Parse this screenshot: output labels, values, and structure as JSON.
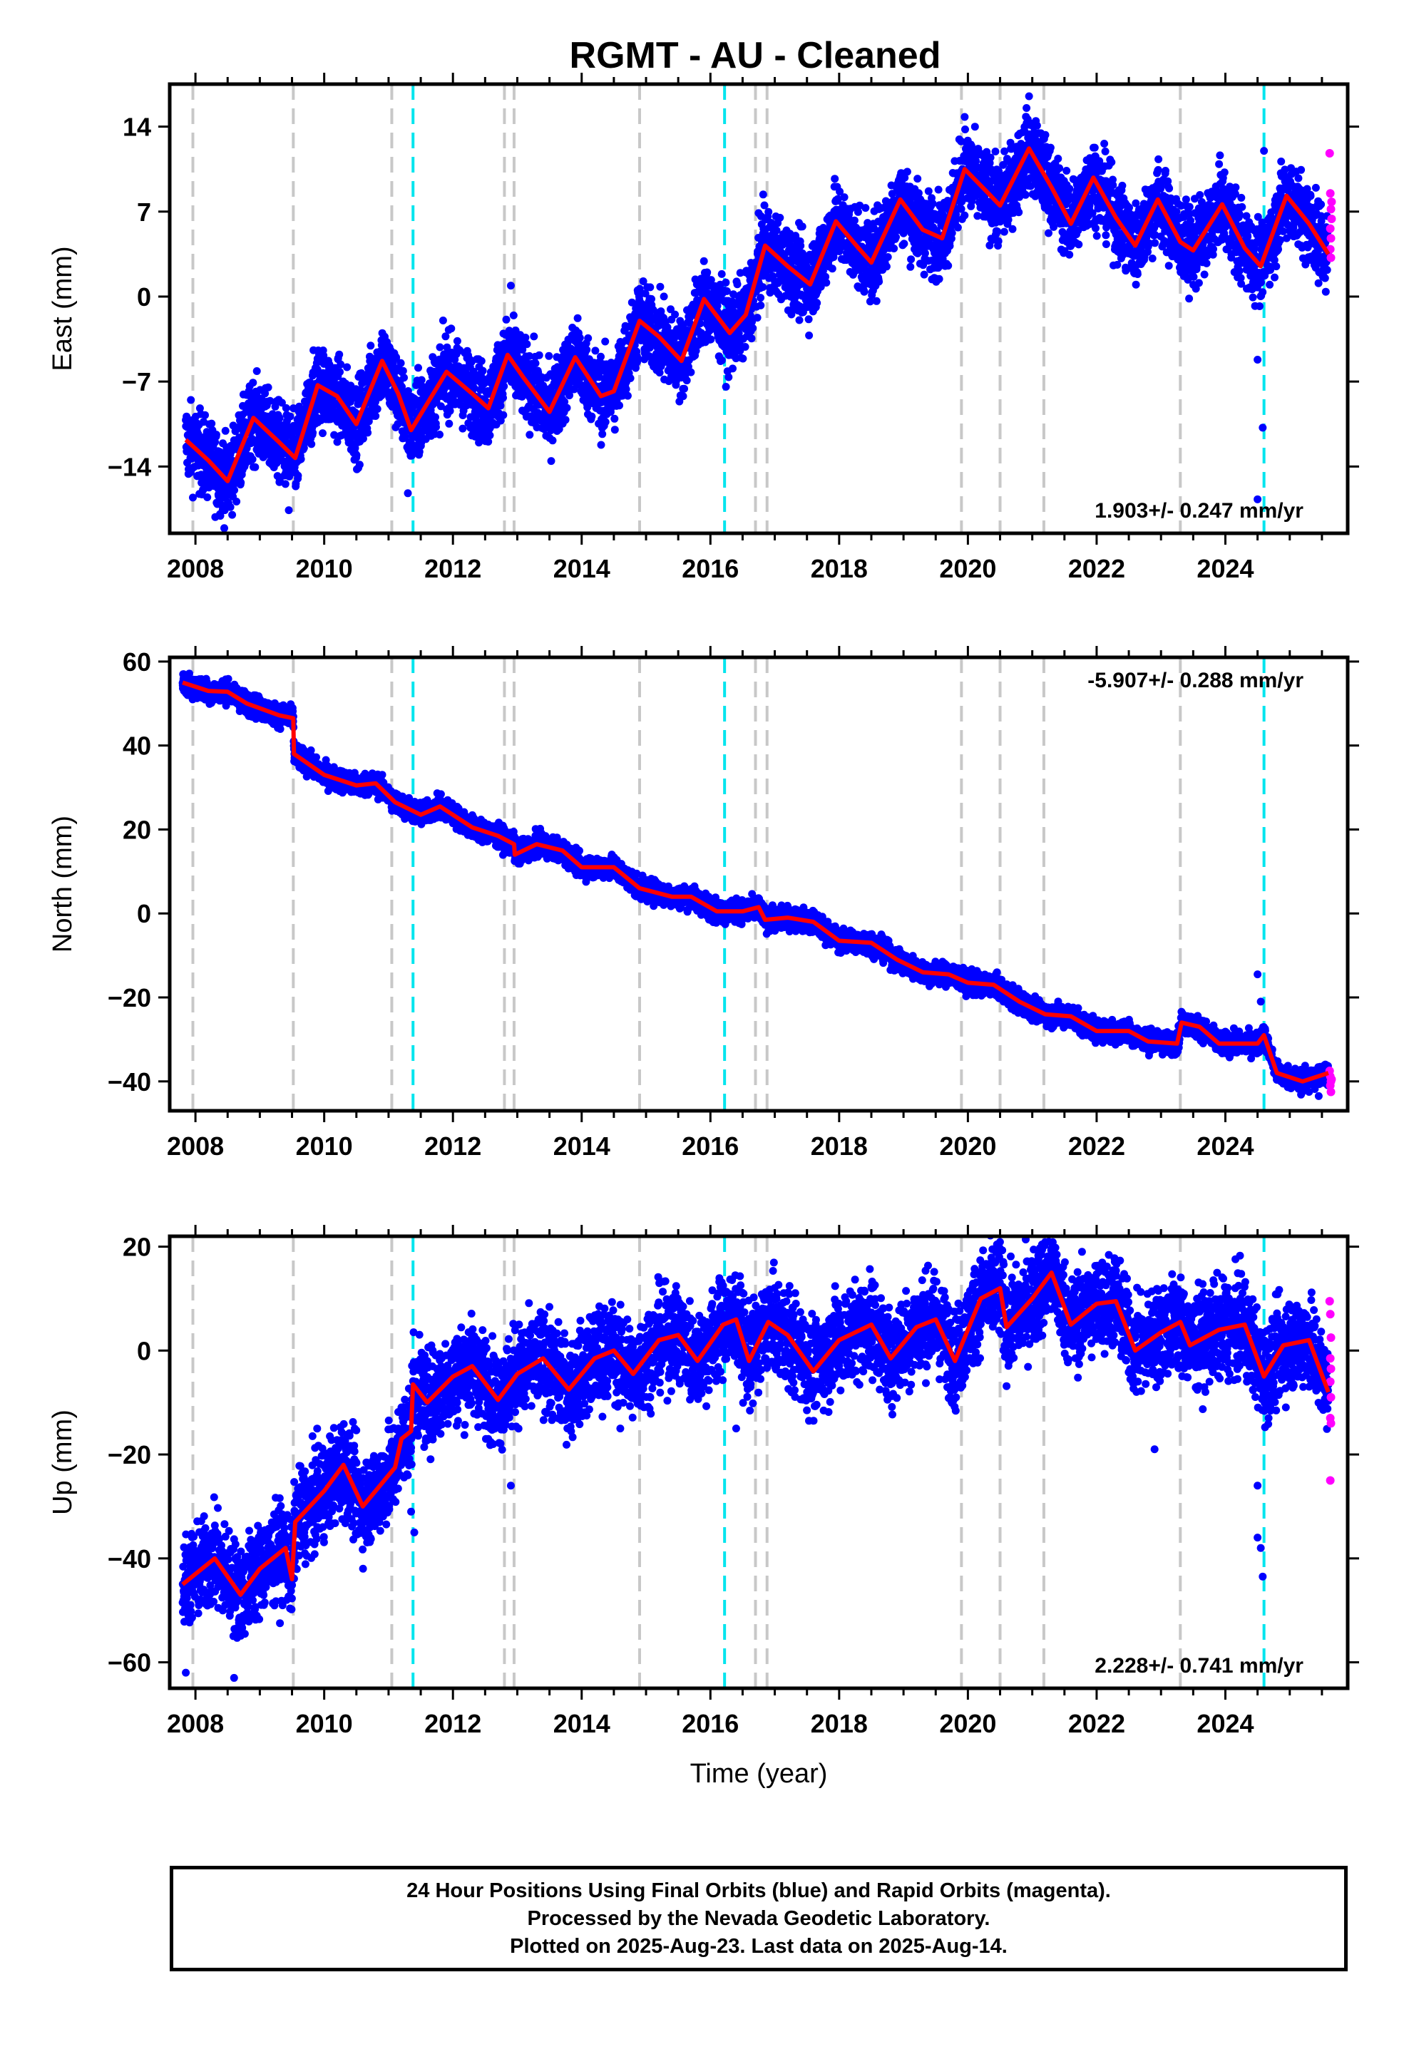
{
  "title": "RGMT  - AU - Cleaned",
  "chart_data": [
    {
      "type": "scatter",
      "ylabel": "East (mm)",
      "xlabel": "",
      "xlim": [
        2007.6,
        2025.9
      ],
      "ylim": [
        -19.5,
        17.5
      ],
      "xticks": [
        2008,
        2010,
        2012,
        2014,
        2016,
        2018,
        2020,
        2022,
        2024
      ],
      "yticks": [
        -14,
        -7,
        0,
        7,
        14
      ],
      "ytick_labels": [
        "−14",
        "−7",
        "0",
        "7",
        "14"
      ],
      "rate_text": "1.903+/- 0.247 mm/yr",
      "rate_position": "bottom-right",
      "noise": 1.6,
      "model": [
        [
          2007.85,
          -11.8
        ],
        [
          2008.2,
          -13.5
        ],
        [
          2008.5,
          -15.2
        ],
        [
          2008.9,
          -10.0
        ],
        [
          2009.3,
          -12.0
        ],
        [
          2009.55,
          -13.3
        ],
        [
          2009.9,
          -7.3
        ],
        [
          2010.2,
          -8.2
        ],
        [
          2010.5,
          -10.5
        ],
        [
          2010.9,
          -5.3
        ],
        [
          2011.15,
          -8.0
        ],
        [
          2011.35,
          -11.0
        ],
        [
          2011.9,
          -6.2
        ],
        [
          2012.3,
          -8.0
        ],
        [
          2012.55,
          -9.2
        ],
        [
          2012.85,
          -4.8
        ],
        [
          2013.1,
          -6.7
        ],
        [
          2013.5,
          -9.5
        ],
        [
          2013.9,
          -5.0
        ],
        [
          2014.3,
          -8.2
        ],
        [
          2014.5,
          -7.8
        ],
        [
          2014.9,
          -2.0
        ],
        [
          2015.2,
          -3.3
        ],
        [
          2015.55,
          -5.3
        ],
        [
          2015.9,
          -0.2
        ],
        [
          2016.3,
          -3.0
        ],
        [
          2016.55,
          -1.5
        ],
        [
          2016.85,
          4.2
        ],
        [
          2017.2,
          2.5
        ],
        [
          2017.55,
          1.0
        ],
        [
          2017.95,
          6.2
        ],
        [
          2018.3,
          4.0
        ],
        [
          2018.5,
          2.8
        ],
        [
          2018.95,
          8.0
        ],
        [
          2019.3,
          5.5
        ],
        [
          2019.6,
          4.8
        ],
        [
          2019.95,
          10.5
        ],
        [
          2020.3,
          8.6
        ],
        [
          2020.5,
          7.5
        ],
        [
          2020.95,
          12.2
        ],
        [
          2021.3,
          9.0
        ],
        [
          2021.6,
          6.0
        ],
        [
          2021.95,
          9.8
        ],
        [
          2022.3,
          6.5
        ],
        [
          2022.6,
          4.2
        ],
        [
          2022.95,
          8.0
        ],
        [
          2023.3,
          4.5
        ],
        [
          2023.5,
          3.8
        ],
        [
          2023.95,
          7.6
        ],
        [
          2024.3,
          4.0
        ],
        [
          2024.55,
          2.5
        ],
        [
          2024.95,
          8.3
        ],
        [
          2025.3,
          6.0
        ],
        [
          2025.6,
          3.5
        ]
      ],
      "outliers": [
        [
          2011.3,
          -16.2
        ],
        [
          2012.9,
          0.9
        ],
        [
          2024.5,
          -5.2
        ],
        [
          2024.58,
          -10.8
        ],
        [
          2024.5,
          -16.7
        ],
        [
          2024.6,
          12.0
        ],
        [
          2020.95,
          16.5
        ],
        [
          2019.95,
          14.8
        ],
        [
          2009.45,
          -17.6
        ]
      ],
      "rapid": [
        [
          2025.62,
          11.8
        ],
        [
          2025.63,
          8.5
        ],
        [
          2025.64,
          7.2
        ],
        [
          2025.65,
          6.4
        ],
        [
          2025.63,
          5.6
        ],
        [
          2025.64,
          4.8
        ],
        [
          2025.63,
          3.9
        ],
        [
          2025.64,
          3.2
        ],
        [
          2025.65,
          7.8
        ]
      ]
    },
    {
      "type": "scatter",
      "ylabel": "North (mm)",
      "xlabel": "",
      "xlim": [
        2007.6,
        2025.9
      ],
      "ylim": [
        -47,
        61
      ],
      "xticks": [
        2008,
        2010,
        2012,
        2014,
        2016,
        2018,
        2020,
        2022,
        2024
      ],
      "yticks": [
        -40,
        -20,
        0,
        20,
        40,
        60
      ],
      "ytick_labels": [
        "−40",
        "−20",
        "0",
        "20",
        "40",
        "60"
      ],
      "rate_text": "-5.907+/- 0.288 mm/yr",
      "rate_position": "top-right",
      "noise": 1.3,
      "model": [
        [
          2007.8,
          55.0
        ],
        [
          2008.2,
          53.0
        ],
        [
          2008.5,
          52.8
        ],
        [
          2008.8,
          50.0
        ],
        [
          2009.3,
          47.2
        ],
        [
          2009.52,
          46.5
        ],
        [
          2009.53,
          38.0
        ],
        [
          2010.0,
          33.0
        ],
        [
          2010.5,
          30.5
        ],
        [
          2010.8,
          31.0
        ],
        [
          2011.1,
          26.5
        ],
        [
          2011.5,
          23.5
        ],
        [
          2011.8,
          25.5
        ],
        [
          2012.3,
          20.5
        ],
        [
          2012.7,
          18.5
        ],
        [
          2012.95,
          16.5
        ],
        [
          2012.96,
          14.0
        ],
        [
          2013.3,
          16.5
        ],
        [
          2013.7,
          15.0
        ],
        [
          2014.0,
          11.0
        ],
        [
          2014.5,
          11.0
        ],
        [
          2014.9,
          6.0
        ],
        [
          2015.4,
          4.0
        ],
        [
          2015.7,
          4.0
        ],
        [
          2016.1,
          0.5
        ],
        [
          2016.5,
          0.5
        ],
        [
          2016.75,
          1.5
        ],
        [
          2016.85,
          -1.5
        ],
        [
          2017.2,
          -1.0
        ],
        [
          2017.6,
          -2.0
        ],
        [
          2018.0,
          -6.5
        ],
        [
          2018.5,
          -7.0
        ],
        [
          2018.9,
          -11.0
        ],
        [
          2019.3,
          -14.0
        ],
        [
          2019.7,
          -14.5
        ],
        [
          2020.0,
          -16.5
        ],
        [
          2020.4,
          -17.0
        ],
        [
          2020.8,
          -21.0
        ],
        [
          2021.2,
          -24.0
        ],
        [
          2021.6,
          -24.5
        ],
        [
          2022.0,
          -28.0
        ],
        [
          2022.5,
          -28.0
        ],
        [
          2022.8,
          -30.5
        ],
        [
          2023.25,
          -31.0
        ],
        [
          2023.32,
          -26.0
        ],
        [
          2023.6,
          -27.0
        ],
        [
          2023.9,
          -31.0
        ],
        [
          2024.5,
          -31.0
        ],
        [
          2024.6,
          -29.0
        ],
        [
          2024.8,
          -38.0
        ],
        [
          2025.2,
          -40.0
        ],
        [
          2025.6,
          -38.0
        ]
      ],
      "outliers": [
        [
          2024.5,
          -14.5
        ],
        [
          2024.55,
          -21.0
        ],
        [
          2025.45,
          -43.5
        ],
        [
          2025.3,
          -42.5
        ]
      ],
      "rapid": [
        [
          2025.62,
          -37.5
        ],
        [
          2025.63,
          -38.8
        ],
        [
          2025.64,
          -40.0
        ],
        [
          2025.63,
          -41.0
        ],
        [
          2025.64,
          -42.5
        ],
        [
          2025.65,
          -39.5
        ]
      ]
    },
    {
      "type": "scatter",
      "ylabel": "Up (mm)",
      "xlabel": "Time (year)",
      "xlim": [
        2007.6,
        2025.9
      ],
      "ylim": [
        -65,
        22
      ],
      "xticks": [
        2008,
        2010,
        2012,
        2014,
        2016,
        2018,
        2020,
        2022,
        2024
      ],
      "yticks": [
        -60,
        -40,
        -20,
        0,
        20
      ],
      "ytick_labels": [
        "−60",
        "−40",
        "−20",
        "0",
        "20"
      ],
      "rate_text": "2.228+/- 0.741 mm/yr",
      "rate_position": "bottom-right",
      "noise": 4.5,
      "model": [
        [
          2007.8,
          -45.0
        ],
        [
          2008.0,
          -43.0
        ],
        [
          2008.3,
          -40.0
        ],
        [
          2008.7,
          -47.0
        ],
        [
          2009.0,
          -42.0
        ],
        [
          2009.4,
          -38.0
        ],
        [
          2009.5,
          -44.0
        ],
        [
          2009.55,
          -33.0
        ],
        [
          2010.0,
          -27.0
        ],
        [
          2010.3,
          -22.0
        ],
        [
          2010.6,
          -30.0
        ],
        [
          2011.0,
          -24.0
        ],
        [
          2011.1,
          -22.5
        ],
        [
          2011.2,
          -17.0
        ],
        [
          2011.35,
          -15.5
        ],
        [
          2011.38,
          -6.5
        ],
        [
          2011.6,
          -10.0
        ],
        [
          2012.0,
          -5.0
        ],
        [
          2012.3,
          -3.0
        ],
        [
          2012.7,
          -9.5
        ],
        [
          2013.0,
          -4.5
        ],
        [
          2013.4,
          -1.5
        ],
        [
          2013.8,
          -7.5
        ],
        [
          2014.2,
          -1.5
        ],
        [
          2014.5,
          0.0
        ],
        [
          2014.8,
          -4.5
        ],
        [
          2015.2,
          2.0
        ],
        [
          2015.5,
          3.0
        ],
        [
          2015.8,
          -2.0
        ],
        [
          2016.2,
          5.0
        ],
        [
          2016.4,
          6.0
        ],
        [
          2016.6,
          -2.0
        ],
        [
          2016.9,
          5.5
        ],
        [
          2017.2,
          3.0
        ],
        [
          2017.6,
          -4.0
        ],
        [
          2018.0,
          2.0
        ],
        [
          2018.5,
          5.0
        ],
        [
          2018.8,
          -1.5
        ],
        [
          2019.2,
          4.5
        ],
        [
          2019.5,
          6.0
        ],
        [
          2019.8,
          -2.0
        ],
        [
          2020.2,
          10.0
        ],
        [
          2020.5,
          12.0
        ],
        [
          2020.6,
          4.5
        ],
        [
          2021.0,
          10.0
        ],
        [
          2021.3,
          15.0
        ],
        [
          2021.6,
          5.0
        ],
        [
          2022.0,
          9.0
        ],
        [
          2022.3,
          9.5
        ],
        [
          2022.6,
          0.0
        ],
        [
          2023.0,
          3.5
        ],
        [
          2023.3,
          5.5
        ],
        [
          2023.45,
          1.0
        ],
        [
          2023.9,
          4.0
        ],
        [
          2024.3,
          5.0
        ],
        [
          2024.6,
          -5.0
        ],
        [
          2024.9,
          1.0
        ],
        [
          2025.3,
          2.0
        ],
        [
          2025.6,
          -8.0
        ]
      ],
      "outliers": [
        [
          2007.85,
          -62.0
        ],
        [
          2008.6,
          -63.0
        ],
        [
          2012.9,
          -26.0
        ],
        [
          2022.9,
          -19.0
        ],
        [
          2016.4,
          -15.0
        ],
        [
          2014.6,
          -15.0
        ],
        [
          2024.5,
          -26.0
        ],
        [
          2024.5,
          -36.0
        ],
        [
          2024.55,
          -38.0
        ],
        [
          2024.58,
          -43.5
        ],
        [
          2011.4,
          -35.0
        ],
        [
          2011.35,
          -31.0
        ],
        [
          2011.3,
          -24.0
        ]
      ],
      "rapid": [
        [
          2025.62,
          9.5
        ],
        [
          2025.63,
          7.0
        ],
        [
          2025.64,
          2.5
        ],
        [
          2025.63,
          -1.5
        ],
        [
          2025.64,
          -3.5
        ],
        [
          2025.63,
          -6.0
        ],
        [
          2025.64,
          -9.0
        ],
        [
          2025.63,
          -13.0
        ],
        [
          2025.64,
          -14.0
        ],
        [
          2025.63,
          -25.0
        ]
      ]
    }
  ],
  "event_lines": {
    "gray_years": [
      2007.96,
      2009.52,
      2011.05,
      2012.8,
      2012.95,
      2014.9,
      2016.7,
      2016.88,
      2019.9,
      2020.5,
      2021.18,
      2023.3
    ],
    "cyan_years": [
      2011.38,
      2016.22,
      2024.6
    ],
    "gray_color": "#c8c8c8",
    "cyan_color": "#00e5ee"
  },
  "colors": {
    "final_orbits": "#0000ff",
    "rapid_orbits": "#ff00ff",
    "model": "#ff0000",
    "frame": "#000000"
  },
  "footer": {
    "line1": "24 Hour Positions Using Final Orbits (blue) and Rapid Orbits (magenta).",
    "line2": "Processed by the Nevada Geodetic Laboratory.",
    "line3": "Plotted on 2025-Aug-23. Last data on 2025-Aug-14."
  }
}
